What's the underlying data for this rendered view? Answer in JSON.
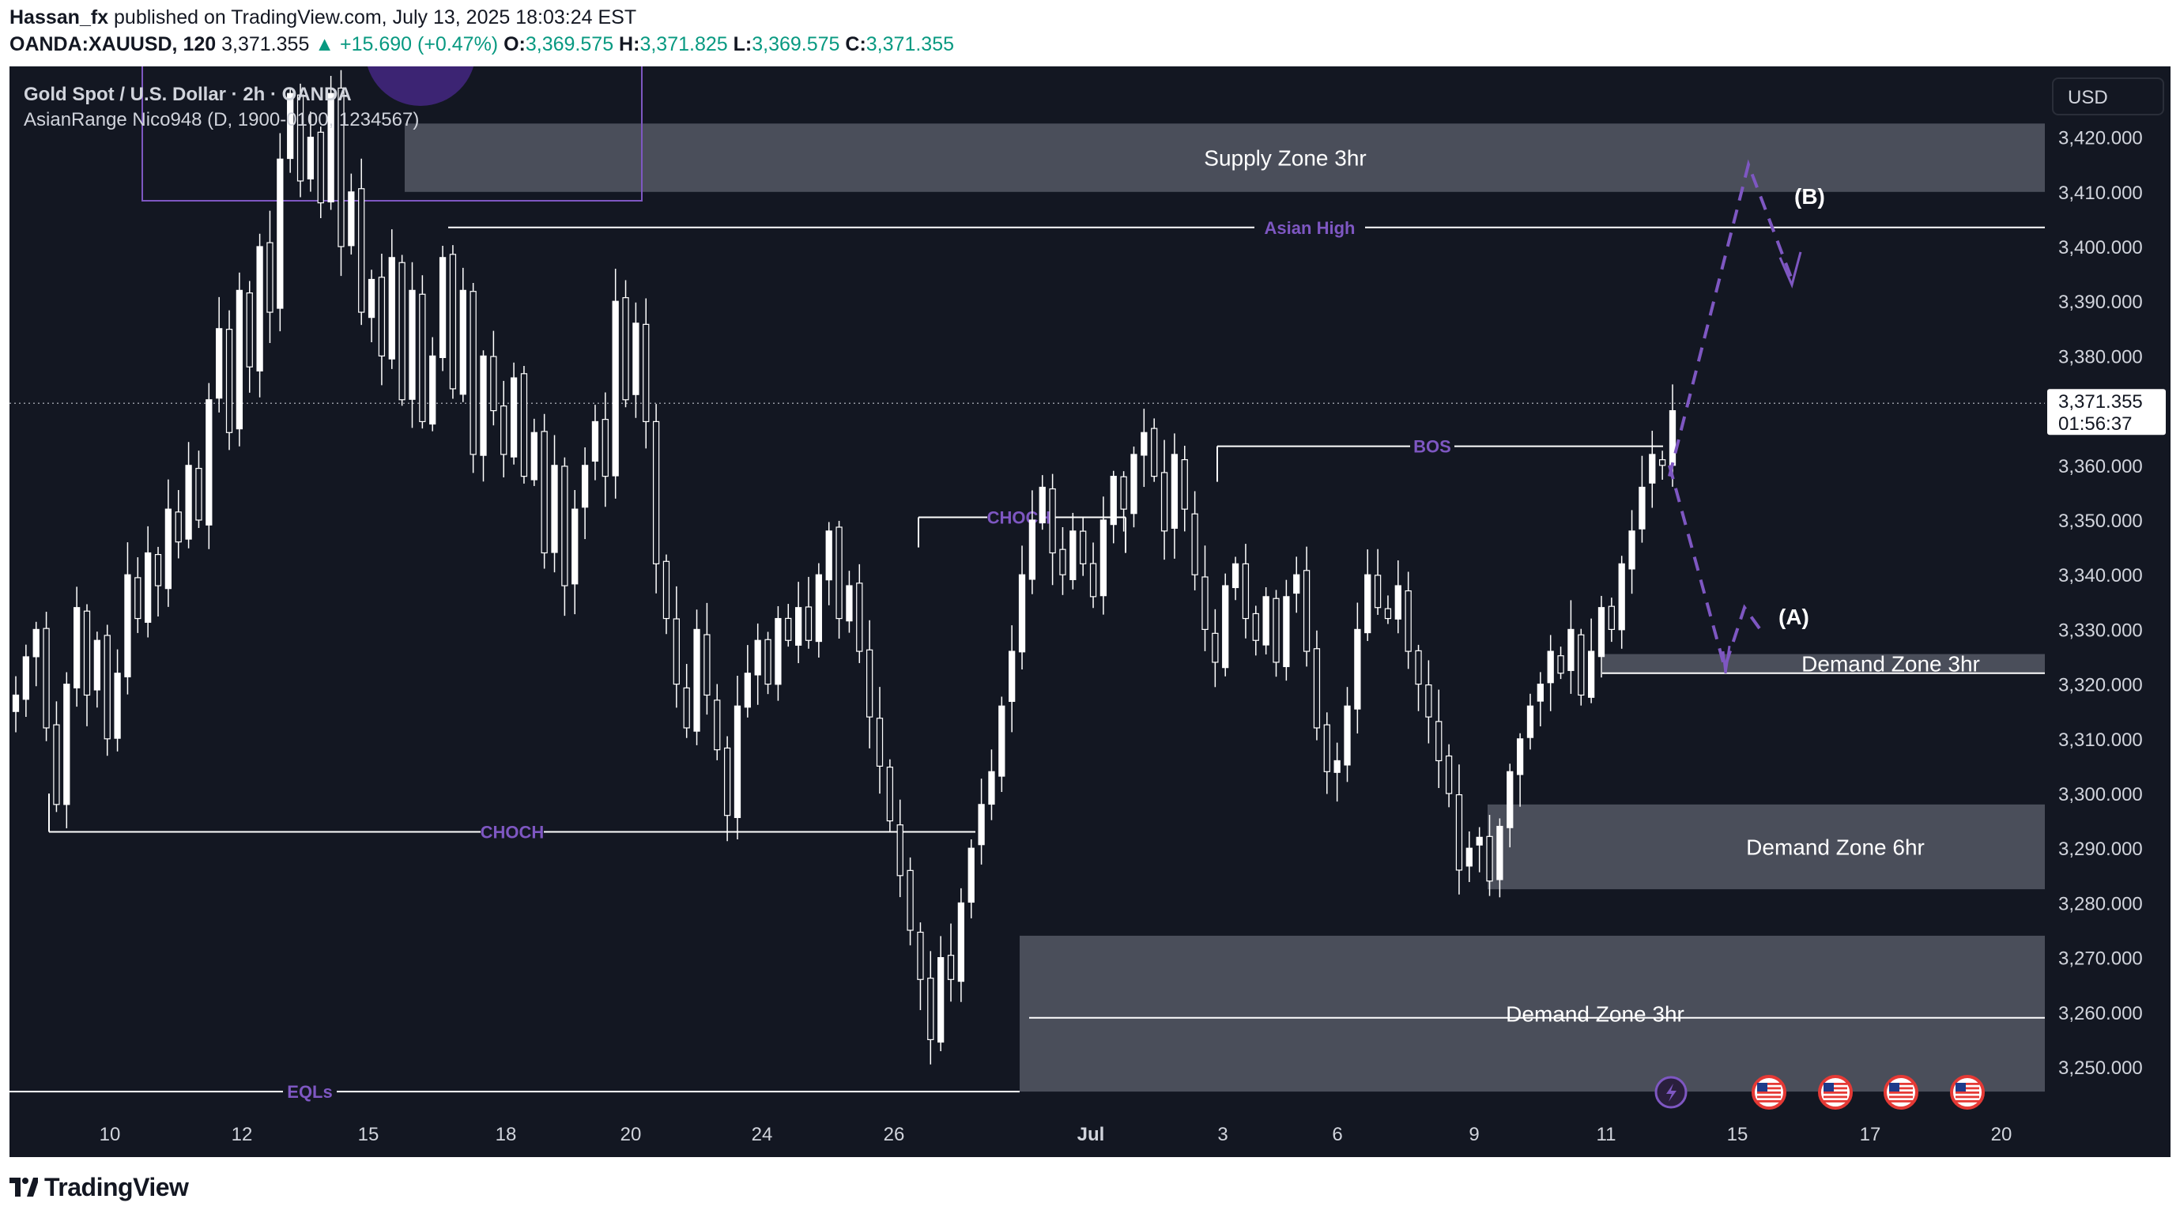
{
  "header": {
    "publisher_line": "Hassan_fx published on TradingView.com, July 13, 2025 18:03:24 EST",
    "author": "Hassan_fx",
    "rest": " published on TradingView.com, July 13, 2025 18:03:24 EST",
    "symbol": "OANDA:XAUUSD, 120",
    "last": "3,371.355",
    "change": "▲ +15.690 (+0.47%)",
    "o_label": "O:",
    "o": "3,369.575",
    "h_label": "H:",
    "h": "3,371.825",
    "l_label": "L:",
    "l": "3,369.575",
    "c_label": "C:",
    "c": "3,371.355"
  },
  "legend": {
    "title": "Gold Spot / U.S. Dollar · 2h · OANDA",
    "indicator": "AsianRange Nico948 (D, 1900-0100, 1234567)"
  },
  "currency_button": "USD",
  "brand": "TradingView",
  "colors": {
    "background": "#131722",
    "candle": "#ffffff",
    "zone": "#4a4e5a",
    "accent_purple": "#7e57c2",
    "text": "#d1d4dc",
    "up_green": "#089981"
  },
  "chart_data": {
    "type": "candlestick",
    "ylim": [
      3244,
      3431
    ],
    "y_ticks": [
      "3,420.000",
      "3,410.000",
      "3,400.000",
      "3,390.000",
      "3,380.000",
      "3,360.000",
      "3,350.000",
      "3,340.000",
      "3,330.000",
      "3,320.000",
      "3,310.000",
      "3,300.000",
      "3,290.000",
      "3,280.000",
      "3,270.000",
      "3,260.000",
      "3,250.000"
    ],
    "x_ticks": [
      "10",
      "12",
      "15",
      "18",
      "20",
      "24",
      "26",
      "Jul",
      "3",
      "6",
      "9",
      "11",
      "15",
      "17",
      "20"
    ],
    "price_label": "3,371.355",
    "countdown": "01:56:37",
    "price_line": 3371.355,
    "close_path": [
      3318,
      3325,
      3330,
      3312,
      3298,
      3320,
      3334,
      3318,
      3328,
      3310,
      3322,
      3340,
      3332,
      3344,
      3338,
      3352,
      3346,
      3360,
      3350,
      3372,
      3385,
      3366,
      3392,
      3378,
      3400,
      3388,
      3416,
      3428,
      3412,
      3420,
      3408,
      3428,
      3400,
      3410,
      3388,
      3394,
      3380,
      3398,
      3372,
      3392,
      3368,
      3380,
      3398,
      3374,
      3392,
      3362,
      3380,
      3370,
      3362,
      3376,
      3358,
      3366,
      3344,
      3360,
      3338,
      3352,
      3360,
      3368,
      3358,
      3390,
      3372,
      3386,
      3368,
      3342,
      3332,
      3320,
      3312,
      3330,
      3318,
      3308,
      3296,
      3316,
      3322,
      3328,
      3320,
      3332,
      3328,
      3334,
      3328,
      3340,
      3348,
      3332,
      3338,
      3326,
      3314,
      3305,
      3295,
      3285,
      3275,
      3266,
      3255,
      3270,
      3266,
      3280,
      3290,
      3298,
      3304,
      3316,
      3326,
      3340,
      3350,
      3356,
      3344,
      3340,
      3348,
      3342,
      3336,
      3350,
      3358,
      3352,
      3362,
      3366,
      3358,
      3348,
      3362,
      3352,
      3340,
      3330,
      3324,
      3338,
      3342,
      3332,
      3328,
      3336,
      3324,
      3336,
      3340,
      3326,
      3312,
      3304,
      3306,
      3316,
      3330,
      3340,
      3334,
      3332,
      3338,
      3326,
      3320,
      3314,
      3306,
      3300,
      3286,
      3290,
      3292,
      3284,
      3294,
      3304,
      3310,
      3316,
      3320,
      3326,
      3322,
      3330,
      3318,
      3326,
      3334,
      3330,
      3342,
      3348,
      3356,
      3362,
      3360,
      3370
    ],
    "zones": [
      {
        "label": "Supply Zone 3hr",
        "low": 3410,
        "high": 3422.5
      },
      {
        "label": "Demand Zone 3hr",
        "low": 3322,
        "high": 3325.5
      },
      {
        "label": "Demand Zone 6hr",
        "low": 3282.5,
        "high": 3298
      },
      {
        "label": "Demand Zone 3hr",
        "low": 3245.5,
        "high": 3274
      }
    ],
    "levels": [
      {
        "label": "Asian High",
        "price": 3403.5
      },
      {
        "label": "BOS",
        "price": 3363.5
      },
      {
        "label": "CHOCH",
        "price": 3350.5
      },
      {
        "label": "CHOCH",
        "price": 3293
      },
      {
        "label": "EQLs",
        "price": 3245.5
      }
    ],
    "projection_labels": [
      "(B)",
      "(A)"
    ]
  }
}
